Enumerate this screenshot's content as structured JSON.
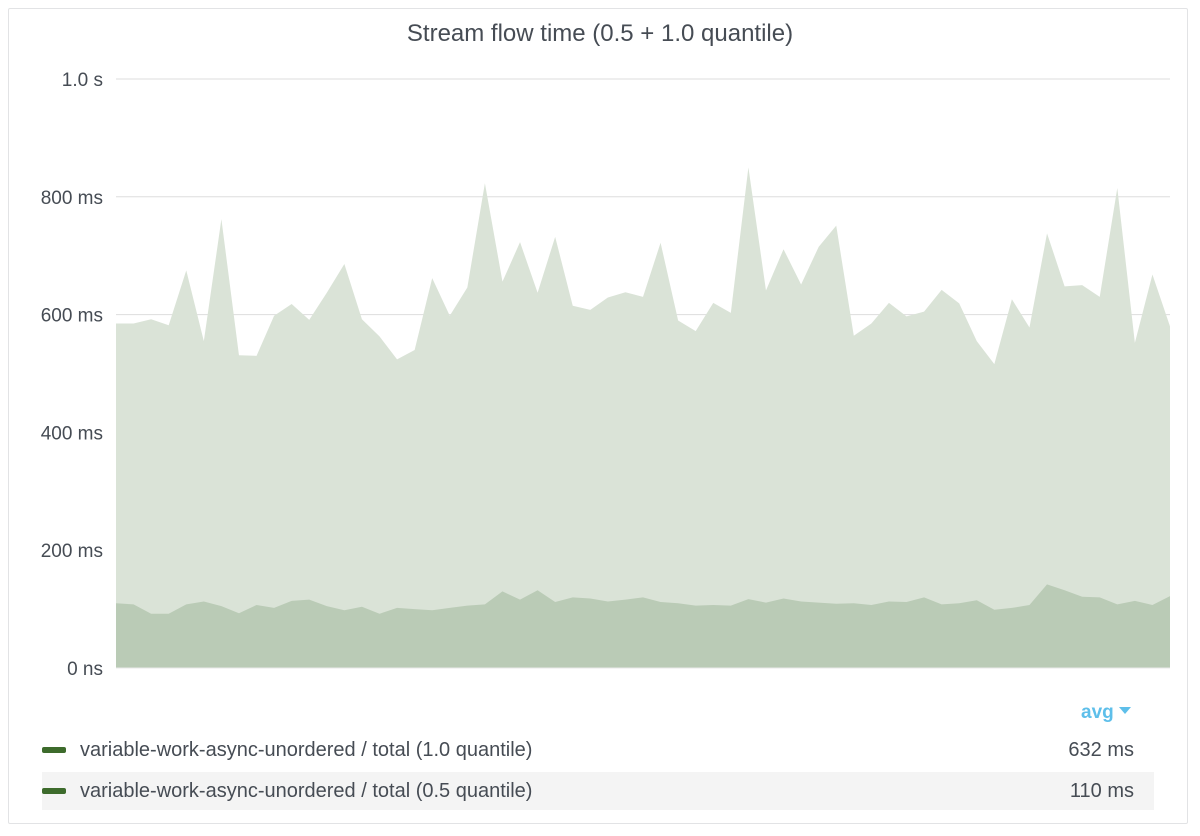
{
  "chart_data": {
    "type": "area",
    "title": "Stream flow time (0.5 + 1.0 quantile)",
    "y_unit": "ms",
    "ylim": [
      0,
      1000
    ],
    "y_ticks": [
      {
        "value": 0,
        "label": "0 ns"
      },
      {
        "value": 200,
        "label": "200 ms"
      },
      {
        "value": 400,
        "label": "400 ms"
      },
      {
        "value": 600,
        "label": "600 ms"
      },
      {
        "value": 800,
        "label": "800 ms"
      },
      {
        "value": 1000,
        "label": "1.0 s"
      }
    ],
    "grid": true,
    "x_ticks_shown": false,
    "series": [
      {
        "name": "variable-work-async-unordered / total (1.0 quantile)",
        "color": "#dae3d7",
        "values": [
          585,
          585,
          592,
          582,
          675,
          555,
          762,
          531,
          530,
          598,
          618,
          591,
          637,
          686,
          592,
          563,
          524,
          540,
          662,
          598,
          646,
          823,
          656,
          723,
          637,
          732,
          615,
          608,
          629,
          638,
          630,
          722,
          590,
          572,
          620,
          603,
          850,
          641,
          711,
          651,
          715,
          751,
          564,
          585,
          620,
          597,
          605,
          642,
          619,
          555,
          516,
          626,
          578,
          738,
          648,
          650,
          630,
          815,
          552,
          668,
          580
        ],
        "stat_label": "avg",
        "stat_value": "632 ms"
      },
      {
        "name": "variable-work-async-unordered / total (0.5 quantile)",
        "color": "#bacbb6",
        "values": [
          110,
          108,
          92,
          92,
          108,
          113,
          105,
          93,
          107,
          102,
          114,
          116,
          105,
          98,
          104,
          92,
          102,
          100,
          98,
          102,
          106,
          108,
          130,
          116,
          132,
          112,
          120,
          118,
          113,
          116,
          120,
          112,
          110,
          106,
          107,
          106,
          117,
          111,
          118,
          113,
          111,
          109,
          110,
          107,
          113,
          112,
          120,
          108,
          110,
          115,
          99,
          102,
          107,
          142,
          132,
          121,
          120,
          108,
          114,
          107,
          122
        ],
        "stat_label": "avg",
        "stat_value": "110 ms"
      }
    ]
  },
  "legend": {
    "sort_label": "avg",
    "rows": [
      {
        "name": "variable-work-async-unordered / total (1.0 quantile)",
        "value": "632 ms"
      },
      {
        "name": "variable-work-async-unordered / total (0.5 quantile)",
        "value": "110 ms"
      }
    ]
  },
  "colors": {
    "grid": "#dddddd",
    "legend_swatch": "#3d6b2c",
    "accent": "#5ebfea"
  }
}
